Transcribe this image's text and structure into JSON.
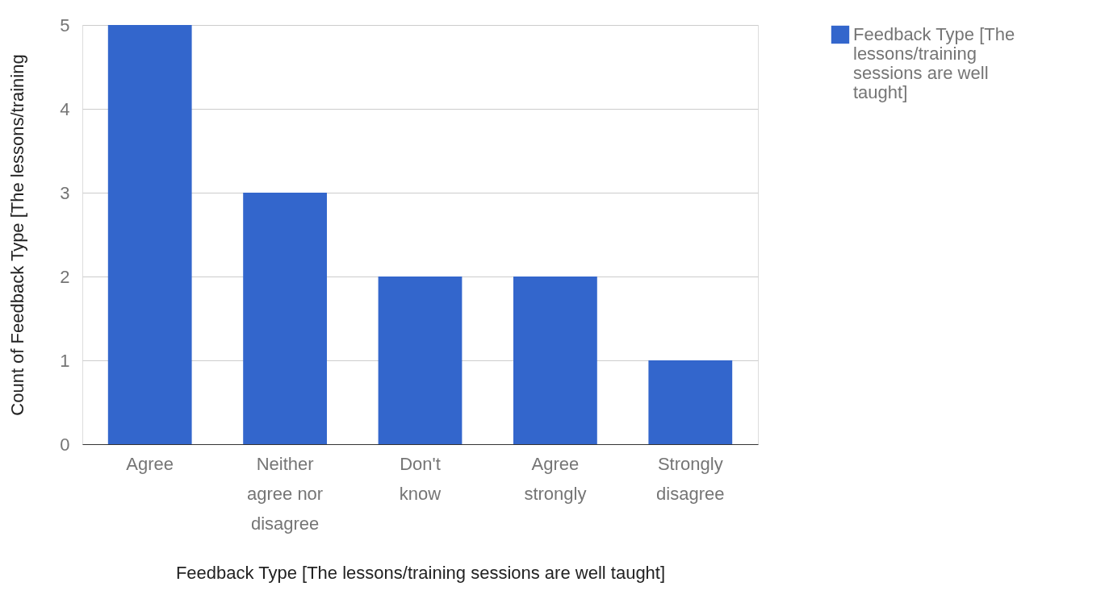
{
  "chart_data": {
    "type": "bar",
    "xlabel": "Feedback Type [The lessons/training sessions are well taught]",
    "ylabel": "Count of Feedback Type [The lessons/training",
    "categories": [
      "Agree",
      "Neither agree nor disagree",
      "Don't know",
      "Agree strongly",
      "Strongly disagree"
    ],
    "series": [
      {
        "name": "Feedback Type [The lessons/training sessions are well taught]",
        "color": "#3366cc",
        "values": [
          5,
          3,
          2,
          2,
          1
        ]
      }
    ],
    "ylim": [
      0,
      5
    ],
    "yticks": [
      0,
      1,
      2,
      3,
      4,
      5
    ],
    "grid": "y",
    "legend": "right"
  }
}
